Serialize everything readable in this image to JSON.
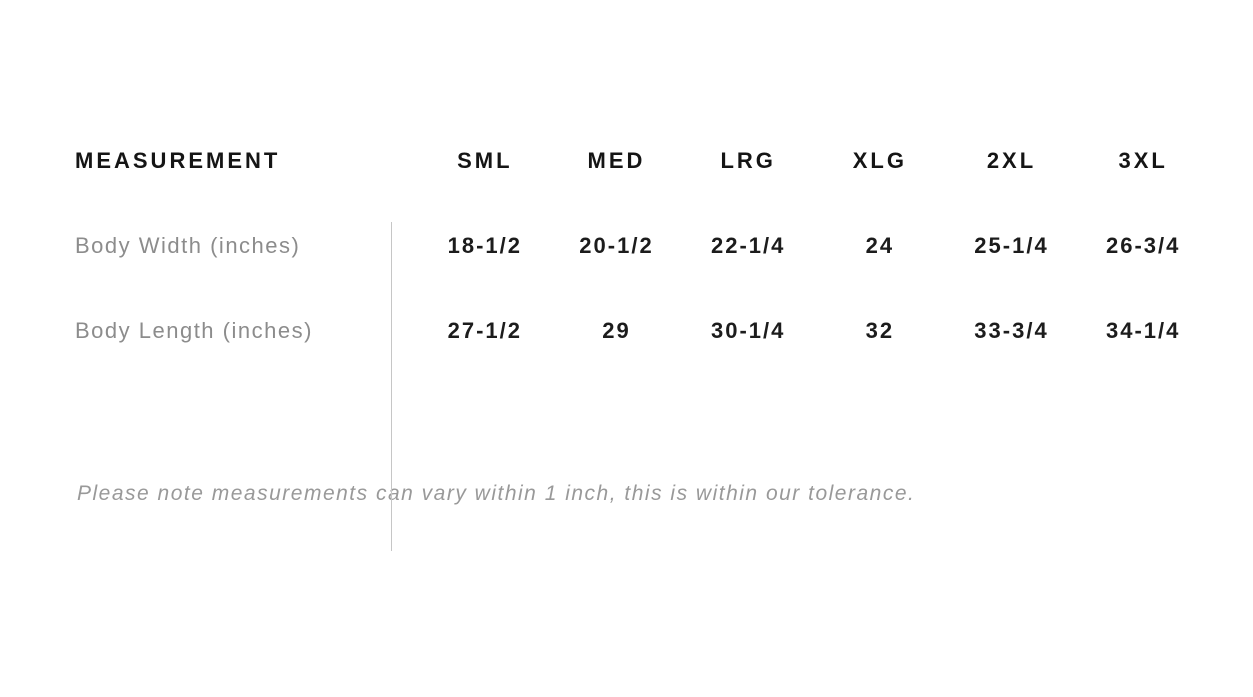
{
  "table": {
    "measurement_header": "MEASUREMENT",
    "size_headers": [
      "SML",
      "MED",
      "LRG",
      "XLG",
      "2XL",
      "3XL"
    ],
    "rows": [
      {
        "label": "Body Width (inches)",
        "values": [
          "18-1/2",
          "20-1/2",
          "22-1/4",
          "24",
          "25-1/4",
          "26-3/4"
        ]
      },
      {
        "label": "Body Length (inches)",
        "values": [
          "27-1/2",
          "29",
          "30-1/4",
          "32",
          "33-3/4",
          "34-1/4"
        ]
      }
    ]
  },
  "note": "Please note measurements can vary within 1 inch, this is within our tolerance.",
  "colors": {
    "header_text": "#151515",
    "value_text": "#1c1c1c",
    "label_text": "#8c8c8c",
    "note_text": "#999999",
    "divider": "#c6c6c6"
  }
}
